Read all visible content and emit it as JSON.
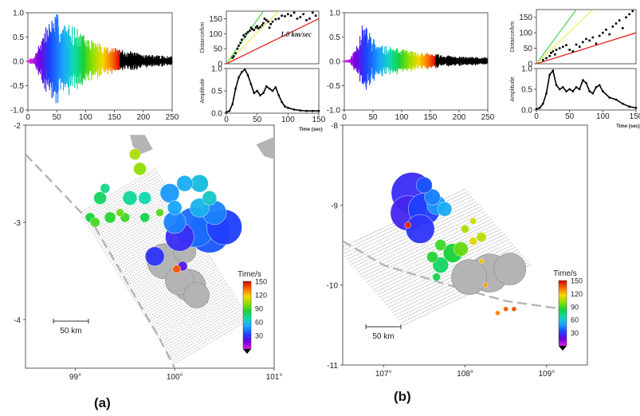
{
  "figure": {
    "panel_labels": [
      "(a)",
      "(b)"
    ]
  },
  "colors": {
    "waveform_late": "#000000",
    "event_gray": "#b4b4b4",
    "grid_dot": "#8c8c8c",
    "fault_dash": "#b4b4b4",
    "line_red": "#e0201e",
    "line_green": "#56d856",
    "line_yellow": "#f0f060",
    "colorbar": [
      "#d40000",
      "#ff6a00",
      "#f5d800",
      "#8ee000",
      "#16d23a",
      "#10d8b0",
      "#1aa6ff",
      "#1a44ff",
      "#6a00e0",
      "#e020e0"
    ]
  },
  "chart_data": [
    {
      "id": "a-waveform",
      "type": "line",
      "xlim": [
        0,
        250
      ],
      "ylim": [
        -1.0,
        1.0
      ],
      "xticks": [
        "0",
        "50",
        "100",
        "150",
        "200",
        "250"
      ],
      "yticks": [
        "-1.0",
        "-0.5",
        "0.0",
        "0.5",
        "1.0"
      ],
      "colored_until": 160,
      "envelope": {
        "x": [
          0,
          10,
          20,
          30,
          40,
          50,
          60,
          80,
          100,
          130,
          160,
          200,
          250
        ],
        "amp": [
          0.05,
          0.08,
          0.4,
          0.7,
          0.9,
          1.0,
          0.8,
          0.75,
          0.5,
          0.35,
          0.25,
          0.15,
          0.1
        ]
      }
    },
    {
      "id": "a-distance",
      "type": "scatter",
      "ylabel": "Distance/km",
      "xlim": [
        0,
        150
      ],
      "ylim": [
        0,
        175
      ],
      "yticks": [
        "0",
        "50",
        "100",
        "150"
      ],
      "annotation": "1.0 km/sec",
      "lines": [
        {
          "color_key": "line_green",
          "x": [
            0,
            60
          ],
          "y": [
            0,
            175
          ]
        },
        {
          "color_key": "line_yellow",
          "x": [
            0,
            85
          ],
          "y": [
            0,
            175
          ]
        },
        {
          "color_key": "line_red",
          "x": [
            0,
            150
          ],
          "y": [
            0,
            150
          ]
        }
      ],
      "points": {
        "x": [
          10,
          12,
          15,
          18,
          20,
          23,
          25,
          28,
          30,
          32,
          35,
          38,
          40,
          42,
          45,
          48,
          50,
          52,
          55,
          58,
          60,
          62,
          65,
          68,
          70,
          72,
          75,
          80,
          85,
          90,
          95,
          100,
          105,
          110,
          115,
          120,
          125,
          130,
          135,
          140,
          145
        ],
        "y": [
          20,
          25,
          35,
          50,
          60,
          70,
          80,
          95,
          90,
          100,
          105,
          110,
          120,
          115,
          112,
          120,
          125,
          118,
          122,
          128,
          135,
          150,
          145,
          140,
          120,
          132,
          140,
          148,
          150,
          160,
          158,
          165,
          160,
          170,
          150,
          155,
          165,
          145,
          150,
          170,
          160
        ]
      }
    },
    {
      "id": "a-amplitude",
      "type": "line",
      "ylabel": "Amplitude",
      "xlabel": "Time (sec)",
      "xlim": [
        0,
        150
      ],
      "ylim": [
        0,
        1.0
      ],
      "xticks": [
        "0",
        "50",
        "100",
        "150"
      ],
      "yticks": [
        "0.0",
        "0.5",
        "1.0"
      ],
      "x": [
        0,
        5,
        10,
        15,
        20,
        25,
        30,
        35,
        40,
        45,
        50,
        55,
        60,
        65,
        70,
        75,
        80,
        85,
        90,
        95,
        100,
        110,
        120,
        130,
        140,
        150
      ],
      "y": [
        0.02,
        0.05,
        0.2,
        0.55,
        0.8,
        0.92,
        0.98,
        0.85,
        0.65,
        0.45,
        0.5,
        0.4,
        0.45,
        0.6,
        0.55,
        0.5,
        0.58,
        0.4,
        0.25,
        0.15,
        0.12,
        0.08,
        0.06,
        0.05,
        0.05,
        0.05
      ]
    },
    {
      "id": "b-waveform",
      "type": "line",
      "xlim": [
        0,
        250
      ],
      "ylim": [
        -1.0,
        1.0
      ],
      "xticks": [
        "0",
        "50",
        "100",
        "150",
        "200",
        "250"
      ],
      "yticks": [
        "-1.0",
        "-0.5",
        "0.0",
        "0.5",
        "1.0"
      ],
      "colored_until": 160,
      "envelope": {
        "x": [
          0,
          10,
          20,
          30,
          40,
          50,
          60,
          80,
          100,
          130,
          160,
          200,
          250
        ],
        "amp": [
          0.03,
          0.05,
          0.3,
          0.75,
          0.7,
          0.5,
          0.35,
          0.3,
          0.25,
          0.2,
          0.15,
          0.1,
          0.08
        ]
      }
    },
    {
      "id": "b-distance",
      "type": "scatter",
      "ylabel": "Distance/km",
      "xlim": [
        0,
        150
      ],
      "ylim": [
        0,
        175
      ],
      "yticks": [
        "0",
        "50",
        "100",
        "150"
      ],
      "lines": [
        {
          "color_key": "line_green",
          "x": [
            0,
            60
          ],
          "y": [
            0,
            175
          ]
        },
        {
          "color_key": "line_yellow",
          "x": [
            0,
            85
          ],
          "y": [
            0,
            175
          ]
        },
        {
          "color_key": "line_red",
          "x": [
            0,
            150
          ],
          "y": [
            0,
            100
          ]
        }
      ],
      "points": {
        "x": [
          10,
          15,
          20,
          22,
          25,
          28,
          30,
          35,
          40,
          45,
          50,
          55,
          60,
          65,
          70,
          75,
          80,
          85,
          90,
          95,
          100,
          105,
          110,
          115,
          120,
          125,
          130,
          135,
          140,
          145
        ],
        "y": [
          12,
          18,
          25,
          35,
          40,
          30,
          45,
          50,
          55,
          60,
          45,
          40,
          62,
          55,
          70,
          80,
          75,
          85,
          65,
          90,
          100,
          110,
          95,
          120,
          130,
          140,
          115,
          150,
          160,
          170
        ]
      }
    },
    {
      "id": "b-amplitude",
      "type": "line",
      "ylabel": "Amplitude",
      "xlabel": "Time (sec)",
      "xlim": [
        0,
        150
      ],
      "ylim": [
        0,
        1.0
      ],
      "xticks": [
        "0",
        "50",
        "100",
        "150"
      ],
      "yticks": [
        "0.0",
        "0.5",
        "1.0"
      ],
      "x": [
        0,
        5,
        10,
        15,
        20,
        25,
        30,
        35,
        40,
        45,
        50,
        55,
        60,
        65,
        70,
        75,
        80,
        85,
        90,
        95,
        100,
        110,
        120,
        130,
        140,
        150
      ],
      "y": [
        0.02,
        0.05,
        0.15,
        0.4,
        0.85,
        0.95,
        0.6,
        0.5,
        0.55,
        0.45,
        0.5,
        0.45,
        0.55,
        0.5,
        0.72,
        0.65,
        0.45,
        0.4,
        0.55,
        0.6,
        0.45,
        0.3,
        0.25,
        0.15,
        0.08,
        0.05
      ]
    },
    {
      "id": "a-map",
      "type": "scatter",
      "xlim": [
        98.5,
        101.0
      ],
      "ylim": [
        -4.5,
        -2.0
      ],
      "xticks": [
        "99°",
        "100°",
        "101°"
      ],
      "yticks": [
        "-2",
        "-3",
        "-4"
      ],
      "scalebar": "50 km",
      "colorbar": {
        "label": "Time/s",
        "ticks": [
          "150",
          "120",
          "90",
          "60",
          "30"
        ],
        "range": [
          0,
          150
        ]
      },
      "events": [
        {
          "lon": 99.9,
          "lat": -3.4,
          "t": null,
          "r": 22
        },
        {
          "lon": 100.05,
          "lat": -3.6,
          "t": null,
          "r": 18
        },
        {
          "lon": 100.15,
          "lat": -3.65,
          "t": null,
          "r": 20
        },
        {
          "lon": 100.1,
          "lat": -3.3,
          "t": null,
          "r": 14
        },
        {
          "lon": 100.22,
          "lat": -3.75,
          "t": null,
          "r": 16
        },
        {
          "lon": 100.2,
          "lat": -3.05,
          "t": 45,
          "r": 25
        },
        {
          "lon": 100.35,
          "lat": -3.1,
          "t": 40,
          "r": 26
        },
        {
          "lon": 100.5,
          "lat": -3.05,
          "t": 35,
          "r": 22
        },
        {
          "lon": 100.05,
          "lat": -3.15,
          "t": 30,
          "r": 18
        },
        {
          "lon": 100.0,
          "lat": -3.0,
          "t": 50,
          "r": 14
        },
        {
          "lon": 99.95,
          "lat": -2.7,
          "t": 55,
          "r": 12
        },
        {
          "lon": 100.1,
          "lat": -2.6,
          "t": 60,
          "r": 10
        },
        {
          "lon": 100.25,
          "lat": -2.6,
          "t": 65,
          "r": 11
        },
        {
          "lon": 100.35,
          "lat": -2.75,
          "t": 70,
          "r": 9
        },
        {
          "lon": 100.0,
          "lat": -2.85,
          "t": 58,
          "r": 9
        },
        {
          "lon": 100.25,
          "lat": -2.85,
          "t": 62,
          "r": 12
        },
        {
          "lon": 100.4,
          "lat": -2.9,
          "t": 50,
          "r": 15
        },
        {
          "lon": 99.8,
          "lat": -3.35,
          "t": 32,
          "r": 12
        },
        {
          "lon": 100.02,
          "lat": -3.48,
          "t": 140,
          "r": 5
        },
        {
          "lon": 100.08,
          "lat": -3.45,
          "t": 25,
          "r": 6
        },
        {
          "lon": 99.25,
          "lat": -2.75,
          "t": 85,
          "r": 8
        },
        {
          "lon": 99.15,
          "lat": -2.95,
          "t": 90,
          "r": 6
        },
        {
          "lon": 99.35,
          "lat": -2.95,
          "t": 92,
          "r": 7
        },
        {
          "lon": 99.3,
          "lat": -2.65,
          "t": 80,
          "r": 6
        },
        {
          "lon": 99.5,
          "lat": -2.95,
          "t": 95,
          "r": 6
        },
        {
          "lon": 99.55,
          "lat": -2.75,
          "t": 78,
          "r": 9
        },
        {
          "lon": 99.7,
          "lat": -2.75,
          "t": 75,
          "r": 8
        },
        {
          "lon": 99.7,
          "lat": -2.95,
          "t": 88,
          "r": 6
        },
        {
          "lon": 99.45,
          "lat": -2.9,
          "t": 100,
          "r": 5
        },
        {
          "lon": 99.2,
          "lat": -3.0,
          "t": 96,
          "r": 6
        },
        {
          "lon": 99.6,
          "lat": -2.3,
          "t": 110,
          "r": 7
        },
        {
          "lon": 99.65,
          "lat": -2.45,
          "t": 105,
          "r": 8
        },
        {
          "lon": 99.85,
          "lat": -2.9,
          "t": 98,
          "r": 5
        }
      ]
    },
    {
      "id": "b-map",
      "type": "scatter",
      "xlim": [
        106.5,
        109.5
      ],
      "ylim": [
        -11.0,
        -8.0
      ],
      "xticks": [
        "107°",
        "108°",
        "109°"
      ],
      "yticks": [
        "-8",
        "-9",
        "-10",
        "-11"
      ],
      "scalebar": "50 km",
      "colorbar": {
        "label": "Time/s",
        "ticks": [
          "150",
          "120",
          "90",
          "60",
          "30"
        ],
        "range": [
          0,
          150
        ]
      },
      "events": [
        {
          "lon": 107.35,
          "lat": -8.85,
          "t": 30,
          "r": 26
        },
        {
          "lon": 107.3,
          "lat": -9.1,
          "t": 28,
          "r": 22
        },
        {
          "lon": 107.5,
          "lat": -9.05,
          "t": 35,
          "r": 20
        },
        {
          "lon": 107.45,
          "lat": -9.3,
          "t": 32,
          "r": 18
        },
        {
          "lon": 107.65,
          "lat": -9.0,
          "t": 55,
          "r": 12
        },
        {
          "lon": 107.75,
          "lat": -9.05,
          "t": 60,
          "r": 9
        },
        {
          "lon": 107.6,
          "lat": -8.9,
          "t": 50,
          "r": 10
        },
        {
          "lon": 107.5,
          "lat": -8.75,
          "t": 40,
          "r": 10
        },
        {
          "lon": 107.3,
          "lat": -9.25,
          "t": 145,
          "r": 4
        },
        {
          "lon": 107.7,
          "lat": -9.5,
          "t": 95,
          "r": 7
        },
        {
          "lon": 107.85,
          "lat": -9.6,
          "t": 90,
          "r": 12
        },
        {
          "lon": 107.7,
          "lat": -9.75,
          "t": 85,
          "r": 10
        },
        {
          "lon": 107.95,
          "lat": -9.55,
          "t": 100,
          "r": 9
        },
        {
          "lon": 107.6,
          "lat": -9.65,
          "t": 92,
          "r": 7
        },
        {
          "lon": 107.65,
          "lat": -9.9,
          "t": 88,
          "r": 5
        },
        {
          "lon": 108.0,
          "lat": -9.3,
          "t": 110,
          "r": 5
        },
        {
          "lon": 108.1,
          "lat": -9.2,
          "t": 115,
          "r": 4
        },
        {
          "lon": 108.2,
          "lat": -9.4,
          "t": 112,
          "r": 6
        },
        {
          "lon": 108.1,
          "lat": -9.45,
          "t": 118,
          "r": 5
        },
        {
          "lon": 108.05,
          "lat": -9.9,
          "t": null,
          "r": 22
        },
        {
          "lon": 108.3,
          "lat": -9.85,
          "t": null,
          "r": 24
        },
        {
          "lon": 108.55,
          "lat": -9.8,
          "t": null,
          "r": 20
        },
        {
          "lon": 108.5,
          "lat": -10.3,
          "t": 140,
          "r": 3
        },
        {
          "lon": 108.6,
          "lat": -10.3,
          "t": 142,
          "r": 3
        },
        {
          "lon": 108.4,
          "lat": -10.35,
          "t": 135,
          "r": 3
        },
        {
          "lon": 108.25,
          "lat": -10.0,
          "t": 130,
          "r": 3
        },
        {
          "lon": 108.2,
          "lat": -9.7,
          "t": 125,
          "r": 3
        }
      ]
    }
  ]
}
